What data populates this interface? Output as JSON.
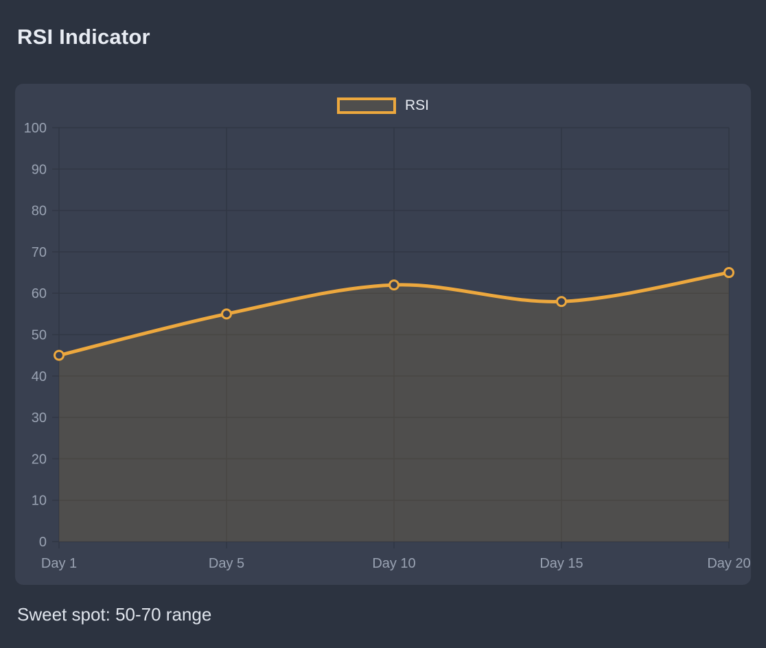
{
  "page": {
    "title": "RSI Indicator",
    "footer_note": "Sweet spot: 50-70 range"
  },
  "legend": {
    "label": "RSI"
  },
  "colors": {
    "page_bg": "#2C3340",
    "panel_bg": "#394050",
    "grid": "#313744",
    "axis_label": "#9AA3B3",
    "line": "#EDA83E",
    "area_fill": "rgba(232,175,63,0.13)",
    "point_fill": "#3A4050",
    "title_text": "#E8ECF3"
  },
  "chart_data": {
    "type": "line",
    "title": "RSI Indicator",
    "categories": [
      "Day 1",
      "Day 5",
      "Day 10",
      "Day 15",
      "Day 20"
    ],
    "series": [
      {
        "name": "RSI",
        "values": [
          45,
          55,
          62,
          58,
          65
        ]
      }
    ],
    "xlabel": "",
    "ylabel": "",
    "ylim": [
      0,
      100
    ],
    "y_tick_step": 10,
    "y_tick_labels": [
      "0",
      "10",
      "20",
      "30",
      "40",
      "50",
      "60",
      "70",
      "80",
      "90",
      "100"
    ],
    "grid": true,
    "legend_position": "top",
    "smoothing": "catmull-rom",
    "annotation": "Sweet spot: 50-70 range"
  }
}
